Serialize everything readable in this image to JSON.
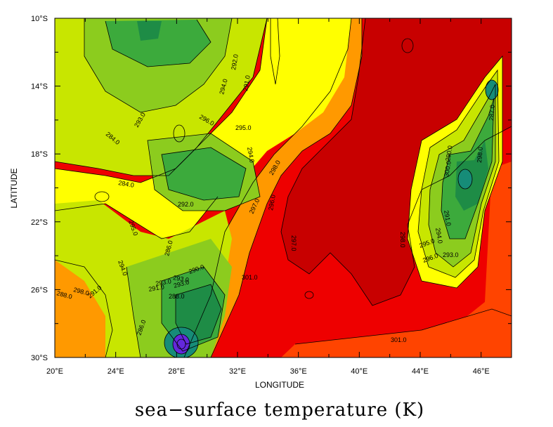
{
  "map": {
    "title": "sea−surface temperature (K)",
    "xlabel": "LONGITUDE",
    "ylabel": "LATITUDE",
    "x_ticks": [
      "20°E",
      "24°E",
      "28°E",
      "32°E",
      "36°E",
      "40°E",
      "44°E",
      "46°E"
    ],
    "y_ticks": [
      "10°S",
      "14°S",
      "18°S",
      "22°S",
      "26°S",
      "30°S"
    ],
    "colors": {
      "hot": "#c80000",
      "red": "#ee0000",
      "orange_red": "#ff4400",
      "orange": "#ff9900",
      "yellow": "#ffff00",
      "yellow_green": "#c8e600",
      "light_green": "#8ccc1e",
      "green": "#3caa3c",
      "dark_green": "#1e8c46",
      "teal": "#168c78",
      "blue_purple": "#6428dc"
    },
    "contour_labels": [
      "292.0",
      "294.0",
      "291.0",
      "293.0",
      "284.0",
      "296.0",
      "295.0",
      "294.0",
      "298.0",
      "284.0",
      "292.0",
      "297.0",
      "296.0",
      "295.0",
      "286.0",
      "294.0",
      "297.0",
      "290.0",
      "288.0",
      "293.0",
      "301.0",
      "298.0",
      "295.0",
      "296.0",
      "293.0",
      "291.0",
      "294.0",
      "301.0",
      "290.0",
      "300.0",
      "298.0",
      "287.0",
      "298.0",
      "291.0",
      "293.0",
      "288.0",
      "291.0",
      "293.0",
      "286.0"
    ]
  }
}
